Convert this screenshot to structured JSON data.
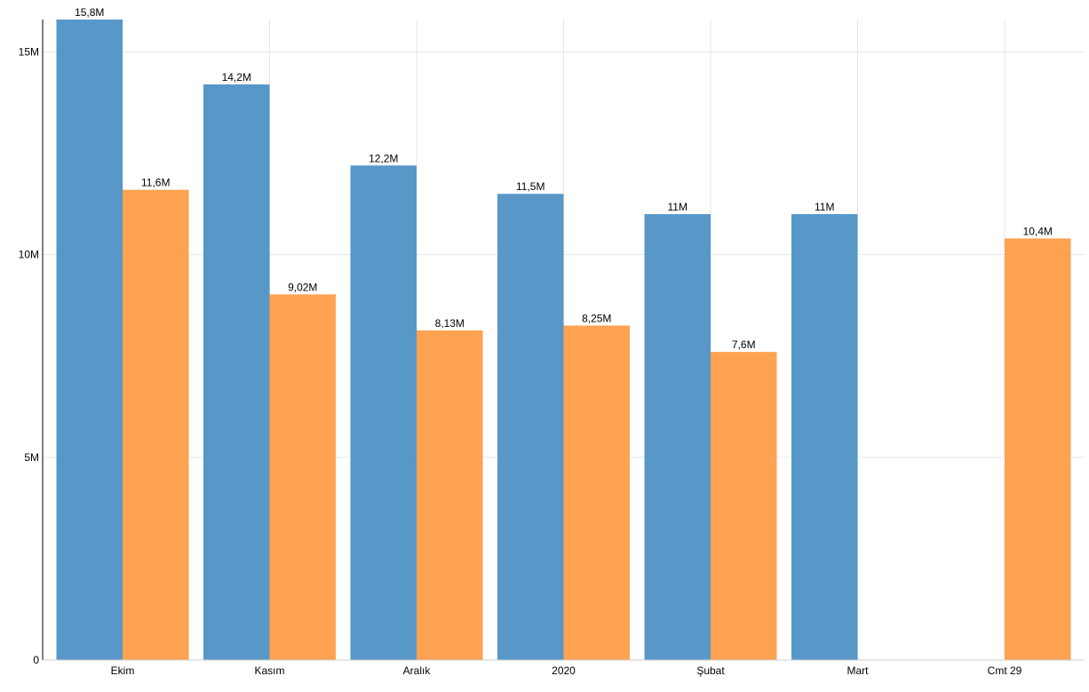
{
  "chart_data": {
    "type": "bar",
    "categories": [
      "Ekim",
      "Kasım",
      "Aralık",
      "2020",
      "Şubat",
      "Mart",
      "Cmt 29"
    ],
    "series": [
      {
        "color": "#4a8fc4",
        "values": [
          15.8,
          14.2,
          12.2,
          11.5,
          11,
          11,
          null
        ],
        "labels": [
          "15,8M",
          "14,2M",
          "12,2M",
          "11,5M",
          "11M",
          "11M",
          null
        ]
      },
      {
        "color": "#ff9a42",
        "values": [
          11.6,
          9.02,
          8.13,
          8.25,
          7.6,
          null,
          10.4
        ],
        "labels": [
          "11,6M",
          "9,02M",
          "8,13M",
          "8,25M",
          "7,6M",
          null,
          "10,4M"
        ]
      }
    ],
    "y_ticks": [
      {
        "value": 0,
        "label": "0"
      },
      {
        "value": 5,
        "label": "5M"
      },
      {
        "value": 10,
        "label": "10M"
      },
      {
        "value": 15,
        "label": "15M"
      }
    ],
    "ylim": [
      0,
      15.8
    ],
    "value_unit": "M",
    "grid": true
  }
}
